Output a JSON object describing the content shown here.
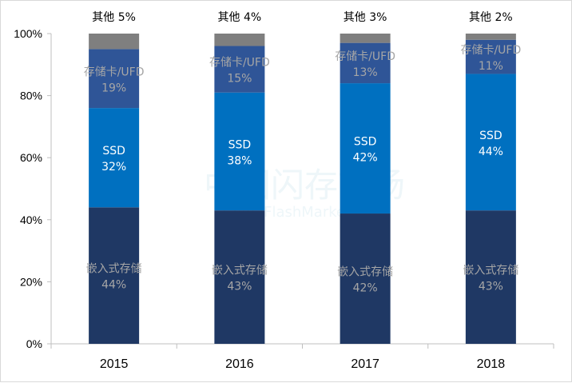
{
  "chart_data": {
    "type": "bar",
    "stacked": true,
    "categories": [
      "2015",
      "2016",
      "2017",
      "2018"
    ],
    "series": [
      {
        "name": "嵌入式存储",
        "values": [
          44,
          43,
          42,
          43
        ],
        "color": "#1f3864",
        "label_color": "#a6a6a6"
      },
      {
        "name": "SSD",
        "values": [
          32,
          38,
          42,
          44
        ],
        "color": "#0070c0",
        "label_color": "#ffffff"
      },
      {
        "name": "存储卡/UFD",
        "values": [
          19,
          15,
          13,
          11
        ],
        "color": "#2f5597",
        "label_color": "#a6a6a6"
      },
      {
        "name": "其他",
        "values": [
          5,
          4,
          3,
          2
        ],
        "color": "#7f7f7f",
        "label_color": "#000000"
      }
    ],
    "ylim": [
      0,
      100
    ],
    "yticks": [
      "0%",
      "20%",
      "40%",
      "60%",
      "80%",
      "100%"
    ],
    "grid": false,
    "legend": "none",
    "watermark": {
      "text": "中国闪存市场",
      "subtext": "ChinaFlashMarket.com"
    }
  }
}
